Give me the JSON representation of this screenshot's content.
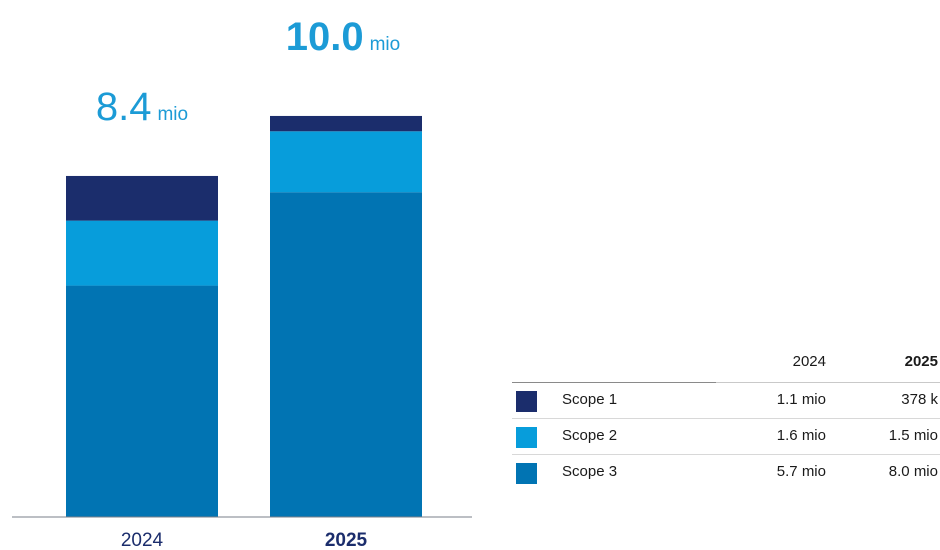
{
  "colors": {
    "scope1": "#1b2d6c",
    "scope2": "#079ddb",
    "scope3": "#0174b3",
    "total_2024": "#1c9bd6",
    "total_2025": "#1c9bd6",
    "label_2025": "#1b2d6c"
  },
  "chart_data": {
    "type": "bar",
    "stacked": true,
    "categories": [
      "2024",
      "2025"
    ],
    "series": [
      {
        "name": "Scope 3",
        "values": [
          5.7,
          8.0
        ],
        "color": "#0174b3"
      },
      {
        "name": "Scope 2",
        "values": [
          1.6,
          1.5
        ],
        "color": "#079ddb"
      },
      {
        "name": "Scope 1",
        "values": [
          1.1,
          0.378
        ],
        "color": "#1b2d6c"
      }
    ],
    "totals": [
      {
        "value": "8.4",
        "unit": "mio"
      },
      {
        "value": "10.0",
        "unit": "mio"
      }
    ],
    "ylim": [
      0,
      10.5
    ],
    "grid": false,
    "legend": "table right"
  },
  "table": {
    "headers": [
      "2024",
      "2025"
    ],
    "rows": [
      {
        "label": "Scope 1",
        "v2024": "1.1 mio",
        "v2025": "378 k",
        "color": "#1b2d6c"
      },
      {
        "label": "Scope 2",
        "v2024": "1.6 mio",
        "v2025": "1.5 mio",
        "color": "#079ddb"
      },
      {
        "label": "Scope 3",
        "v2024": "5.7 mio",
        "v2025": "8.0 mio",
        "color": "#0174b3"
      }
    ]
  }
}
